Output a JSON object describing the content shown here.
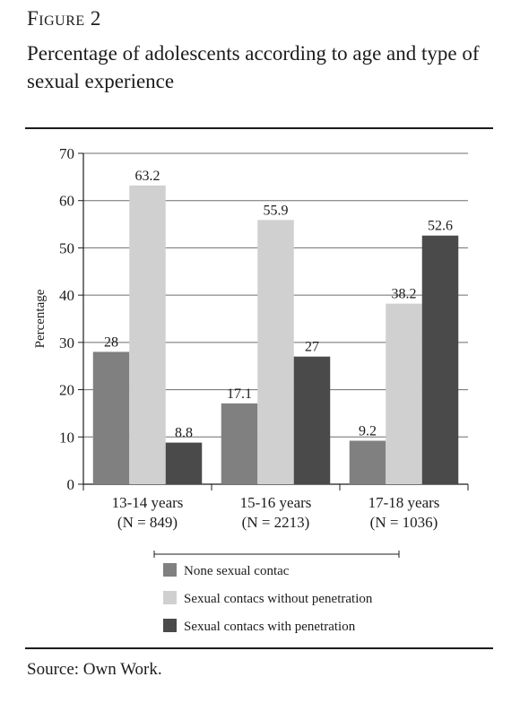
{
  "figure": {
    "label": "Figure 2",
    "title": "Percentage of adolescents according to age and type of sexual experience",
    "source": "Source: Own Work."
  },
  "chart_data": {
    "type": "bar",
    "ylabel": "Percentage",
    "xlabel": "",
    "ylim": [
      0,
      70
    ],
    "yticks": [
      0,
      10,
      20,
      30,
      40,
      50,
      60,
      70
    ],
    "grid": true,
    "legend_position": "bottom",
    "categories": [
      {
        "line1": "13-14 years",
        "line2": "(N = 849)"
      },
      {
        "line1": "15-16 years",
        "line2": "(N = 2213)"
      },
      {
        "line1": "17-18 years",
        "line2": "(N = 1036)"
      }
    ],
    "series": [
      {
        "name": "None sexual contac",
        "values": [
          28,
          17.1,
          9.2
        ],
        "labels": [
          "28",
          "17.1",
          "9.2"
        ],
        "color": "#808080"
      },
      {
        "name": "Sexual contacs without penetration",
        "values": [
          63.2,
          55.9,
          38.2
        ],
        "labels": [
          "63.2",
          "55.9",
          "38.2"
        ],
        "color": "#d0d0d0"
      },
      {
        "name": "Sexual contacs with penetration",
        "values": [
          8.8,
          27,
          52.6
        ],
        "labels": [
          "8.8",
          "27",
          "52.6"
        ],
        "color": "#4a4a4a"
      }
    ]
  }
}
